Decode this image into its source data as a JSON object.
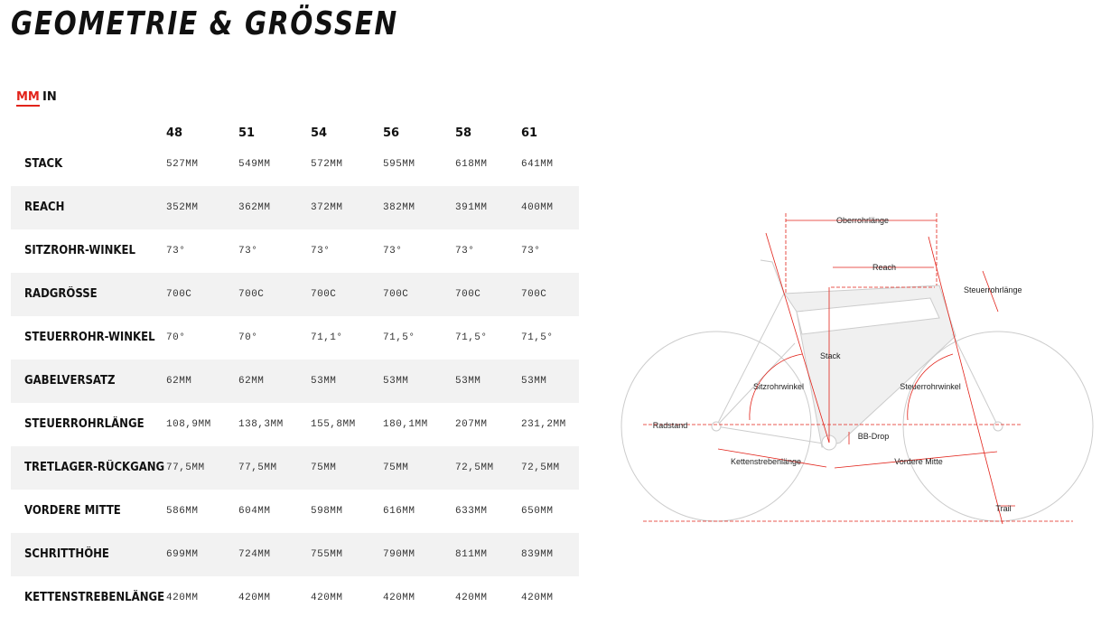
{
  "header": {
    "title": "GEOMETRIE & GRÖSSEN",
    "units": [
      "MM",
      "IN"
    ]
  },
  "table": {
    "sizes": [
      "48",
      "51",
      "54",
      "56",
      "58",
      "61"
    ],
    "rows": [
      {
        "label": "STACK",
        "values": [
          "527MM",
          "549MM",
          "572MM",
          "595MM",
          "618MM",
          "641MM"
        ]
      },
      {
        "label": "REACH",
        "values": [
          "352MM",
          "362MM",
          "372MM",
          "382MM",
          "391MM",
          "400MM"
        ]
      },
      {
        "label": "SITZROHR-WINKEL",
        "values": [
          "73°",
          "73°",
          "73°",
          "73°",
          "73°",
          "73°"
        ]
      },
      {
        "label": "RADGRÖSSE",
        "values": [
          "700C",
          "700C",
          "700C",
          "700C",
          "700C",
          "700C"
        ]
      },
      {
        "label": "STEUERROHR-WINKEL",
        "values": [
          "70°",
          "70°",
          "71,1°",
          "71,5°",
          "71,5°",
          "71,5°"
        ]
      },
      {
        "label": "GABELVERSATZ",
        "values": [
          "62MM",
          "62MM",
          "53MM",
          "53MM",
          "53MM",
          "53MM"
        ]
      },
      {
        "label": "STEUERROHRLÄNGE",
        "values": [
          "108,9MM",
          "138,3MM",
          "155,8MM",
          "180,1MM",
          "207MM",
          "231,2MM"
        ]
      },
      {
        "label": "TRETLAGER-RÜCKGANG",
        "values": [
          "77,5MM",
          "77,5MM",
          "75MM",
          "75MM",
          "72,5MM",
          "72,5MM"
        ]
      },
      {
        "label": "VORDERE MITTE",
        "values": [
          "586MM",
          "604MM",
          "598MM",
          "616MM",
          "633MM",
          "650MM"
        ]
      },
      {
        "label": "SCHRITTHÖHE",
        "values": [
          "699MM",
          "724MM",
          "755MM",
          "790MM",
          "811MM",
          "839MM"
        ]
      },
      {
        "label": "KETTENSTREBENLÄNGE",
        "values": [
          "420MM",
          "420MM",
          "420MM",
          "420MM",
          "420MM",
          "420MM"
        ]
      }
    ]
  },
  "diagram": {
    "labels": [
      "Oberrohrlänge",
      "Reach",
      "Steuerrohrlänge",
      "Stack",
      "Sitzrohrwinkel",
      "Steuerrohrwinkel",
      "Radstand",
      "BB-Drop",
      "Kettenstrebenlänge",
      "Vordere Mitte",
      "Trail"
    ]
  }
}
